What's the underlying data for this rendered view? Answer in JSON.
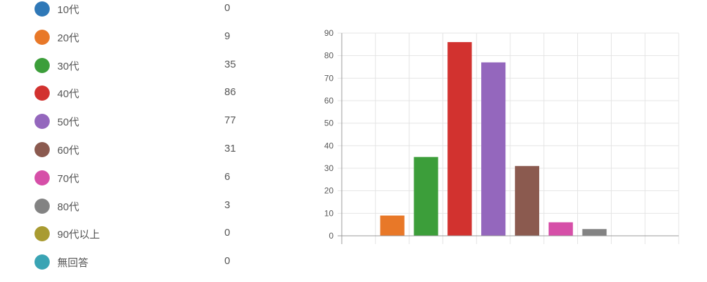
{
  "legend": {
    "items": [
      {
        "label": "10代",
        "value": "0",
        "color": "#2f78b7"
      },
      {
        "label": "20代",
        "value": "9",
        "color": "#e87828"
      },
      {
        "label": "30代",
        "value": "35",
        "color": "#3c9e3a"
      },
      {
        "label": "40代",
        "value": "86",
        "color": "#d2322f"
      },
      {
        "label": "50代",
        "value": "77",
        "color": "#9467bd"
      },
      {
        "label": "60代",
        "value": "31",
        "color": "#8b5a4f"
      },
      {
        "label": "70代",
        "value": "6",
        "color": "#d64fa8"
      },
      {
        "label": "80代",
        "value": "3",
        "color": "#838383"
      },
      {
        "label": "90代以上",
        "value": "0",
        "color": "#a99b31"
      },
      {
        "label": "無回答",
        "value": "0",
        "color": "#3aa4b4"
      }
    ]
  },
  "chart_data": {
    "type": "bar",
    "categories": [
      "10代",
      "20代",
      "30代",
      "40代",
      "50代",
      "60代",
      "70代",
      "80代",
      "90代以上",
      "無回答"
    ],
    "values": [
      0,
      9,
      35,
      86,
      77,
      31,
      6,
      3,
      0,
      0
    ],
    "colors": [
      "#2f78b7",
      "#e87828",
      "#3c9e3a",
      "#d2322f",
      "#9467bd",
      "#8b5a4f",
      "#d64fa8",
      "#838383",
      "#a99b31",
      "#3aa4b4"
    ],
    "yticks": [
      "0",
      "10",
      "20",
      "30",
      "40",
      "50",
      "60",
      "70",
      "80",
      "90"
    ],
    "ylim": [
      0,
      90
    ],
    "grid": true,
    "xtick_labels_visible": false
  }
}
